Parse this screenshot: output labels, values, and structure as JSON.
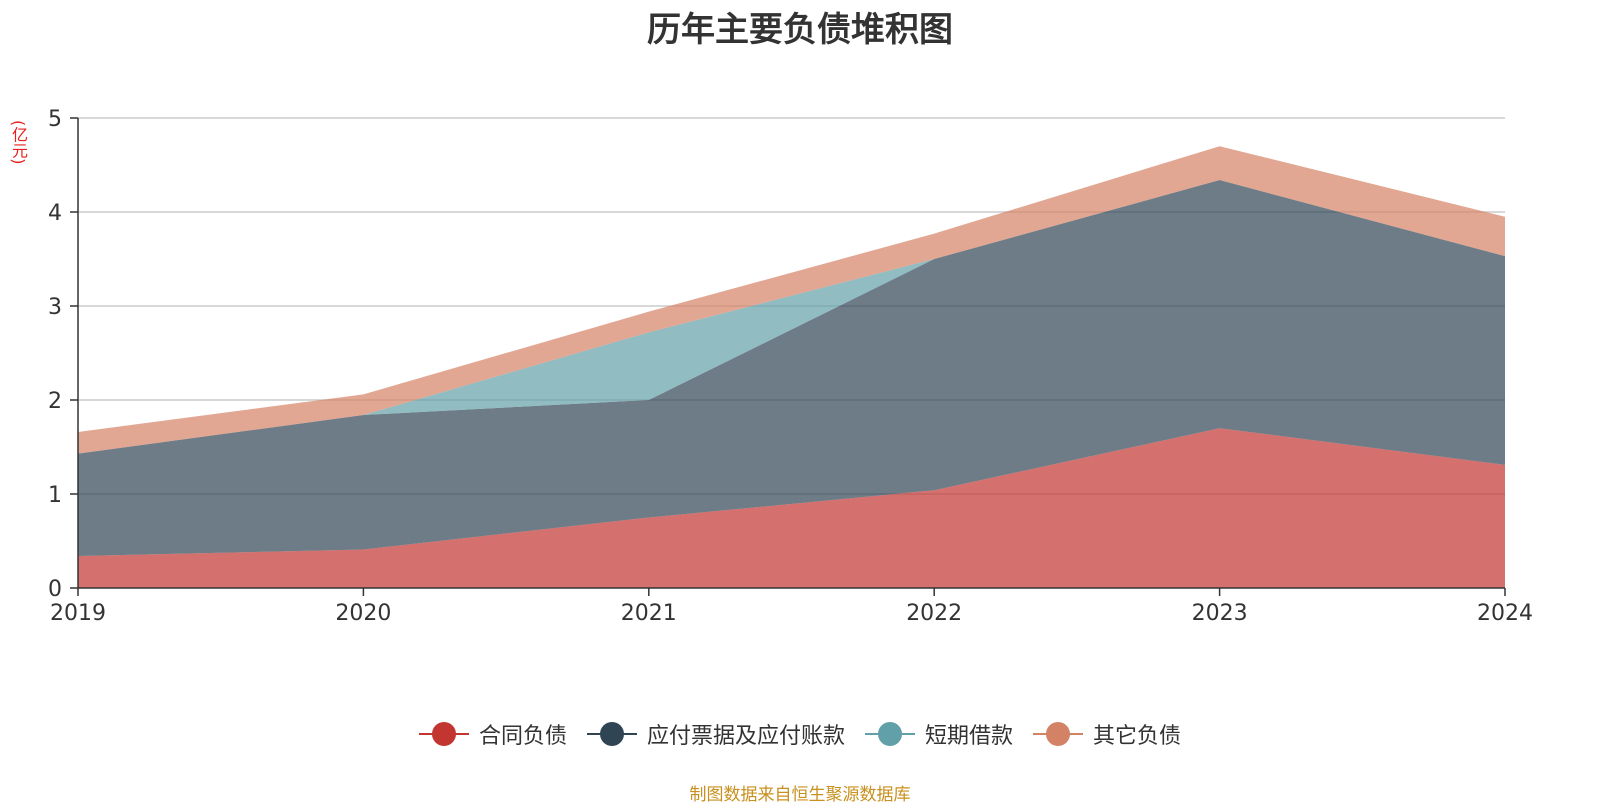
{
  "chart_data": {
    "type": "area",
    "stacked": true,
    "title": "历年主要负债堆积图",
    "ylabel": "(亿元)",
    "xlabel": "",
    "categories": [
      "2019",
      "2020",
      "2021",
      "2022",
      "2023",
      "2024"
    ],
    "ylim": [
      0,
      5
    ],
    "yticks": [
      "0",
      "1",
      "2",
      "3",
      "4",
      "5"
    ],
    "grid": true,
    "legend_position": "bottom",
    "series": [
      {
        "name": "合同负债",
        "color": "#c23531",
        "values": [
          0.34,
          0.41,
          0.75,
          1.04,
          1.7,
          1.31
        ]
      },
      {
        "name": "应付票据及应付账款",
        "color": "#2f4554",
        "values": [
          1.09,
          1.43,
          1.25,
          2.46,
          2.64,
          2.22
        ]
      },
      {
        "name": "短期借款",
        "color": "#61a0a8",
        "values": [
          0.0,
          0.0,
          0.72,
          0.0,
          0.0,
          0.0
        ]
      },
      {
        "name": "其它负债",
        "color": "#d48265",
        "values": [
          0.23,
          0.22,
          0.22,
          0.27,
          0.36,
          0.42
        ]
      }
    ]
  },
  "source_note": "制图数据来自恒生聚源数据库"
}
